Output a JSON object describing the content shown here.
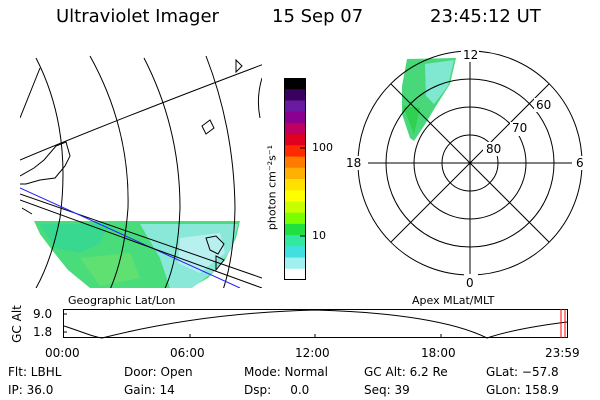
{
  "header": {
    "instrument": "Ultraviolet Imager",
    "date": "15 Sep 07",
    "time": "23:45:12 UT"
  },
  "colorbar": {
    "unit_label": "photon cm⁻²s⁻¹",
    "ticks": [
      "100",
      "10"
    ],
    "colors": [
      "#000000",
      "#3a0060",
      "#6a1aa0",
      "#8a0090",
      "#c00060",
      "#e00020",
      "#ff2a00",
      "#ff7a00",
      "#ffb000",
      "#ffe000",
      "#ffff00",
      "#c8ff00",
      "#7aff00",
      "#20e040",
      "#30e8a0",
      "#40e0e0",
      "#a0f0f0",
      "#ffffff"
    ]
  },
  "geo_panel": {
    "caption": "Geographic Lat/Lon"
  },
  "polar_panel": {
    "caption": "Apex MLat/MLT",
    "mlt_labels": {
      "top": "12",
      "left": "18",
      "right": "6",
      "bottom": "0"
    },
    "lat_labels": [
      "60",
      "70",
      "80"
    ]
  },
  "timeline": {
    "ylabel": "GC Alt",
    "yticks": [
      "9.0",
      "1.8"
    ],
    "xticks": [
      "00:00",
      "06:00",
      "12:00",
      "18:00",
      "23:59"
    ],
    "marker_color": "#ff0000"
  },
  "status": {
    "flt": "Flt: LBHL",
    "ip": "IP: 36.0",
    "door": "Door: Open",
    "gain": "Gain: 14",
    "mode": "Mode: Normal",
    "dsp": "Dsp:     0.0",
    "gc_alt": "GC Alt: 6.2 Re",
    "seq": "Seq: 39",
    "glat": "GLat: −57.8",
    "glon": "GLon: 158.9"
  }
}
